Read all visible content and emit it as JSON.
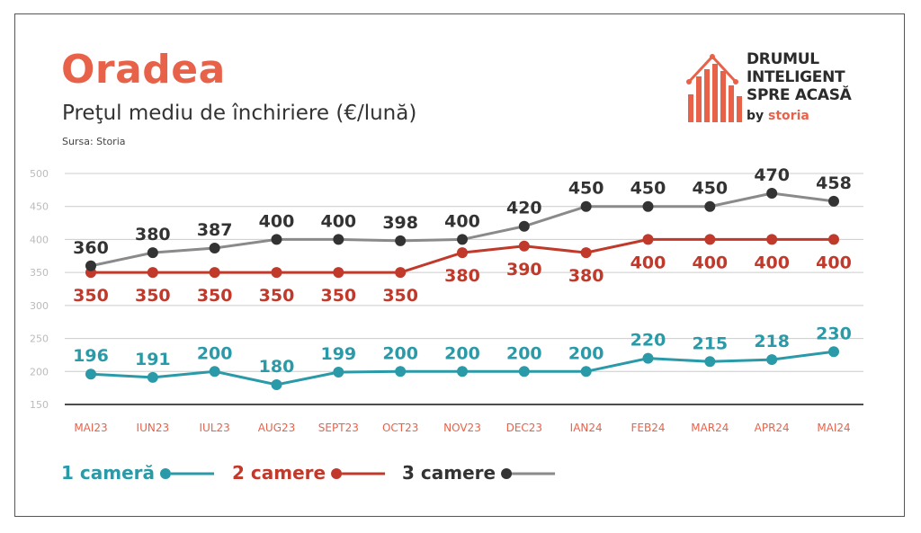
{
  "header": {
    "title": "Oradea",
    "subtitle": "Preţul mediu de închiriere (€/lună)",
    "source": "Sursa: Storia"
  },
  "logo": {
    "line1": "DRUMUL",
    "line2": "INTELIGENT",
    "line3": "SPRE ACASĂ",
    "by": "by",
    "brand": "storia"
  },
  "colors": {
    "one_room": "#2a9aa8",
    "two_rooms": "#c0392b",
    "three_rooms": "#333333",
    "three_rooms_line": "#8a8a8a",
    "axis_labels": "#e8624a",
    "grid": "#cccccc",
    "title": "#e8624a"
  },
  "chart_data": {
    "type": "line",
    "categories": [
      "MAI23",
      "IUN23",
      "IUL23",
      "AUG23",
      "SEPT23",
      "OCT23",
      "NOV23",
      "DEC23",
      "IAN24",
      "FEB24",
      "MAR24",
      "APR24",
      "MAI24"
    ],
    "yticks": [
      150,
      200,
      250,
      300,
      350,
      400,
      450,
      500
    ],
    "ylim": [
      150,
      500
    ],
    "grid": true,
    "legend_position": "bottom-left",
    "series": [
      {
        "name": "1 cameră",
        "key": "one_room",
        "values": [
          196,
          191,
          200,
          180,
          199,
          200,
          200,
          200,
          200,
          220,
          215,
          218,
          230
        ]
      },
      {
        "name": "2 camere",
        "key": "two_rooms",
        "values": [
          350,
          350,
          350,
          350,
          350,
          350,
          380,
          390,
          380,
          400,
          400,
          400,
          400
        ]
      },
      {
        "name": "3 camere",
        "key": "three_rooms",
        "values": [
          360,
          380,
          387,
          400,
          400,
          398,
          400,
          420,
          450,
          450,
          450,
          470,
          458
        ]
      }
    ]
  }
}
